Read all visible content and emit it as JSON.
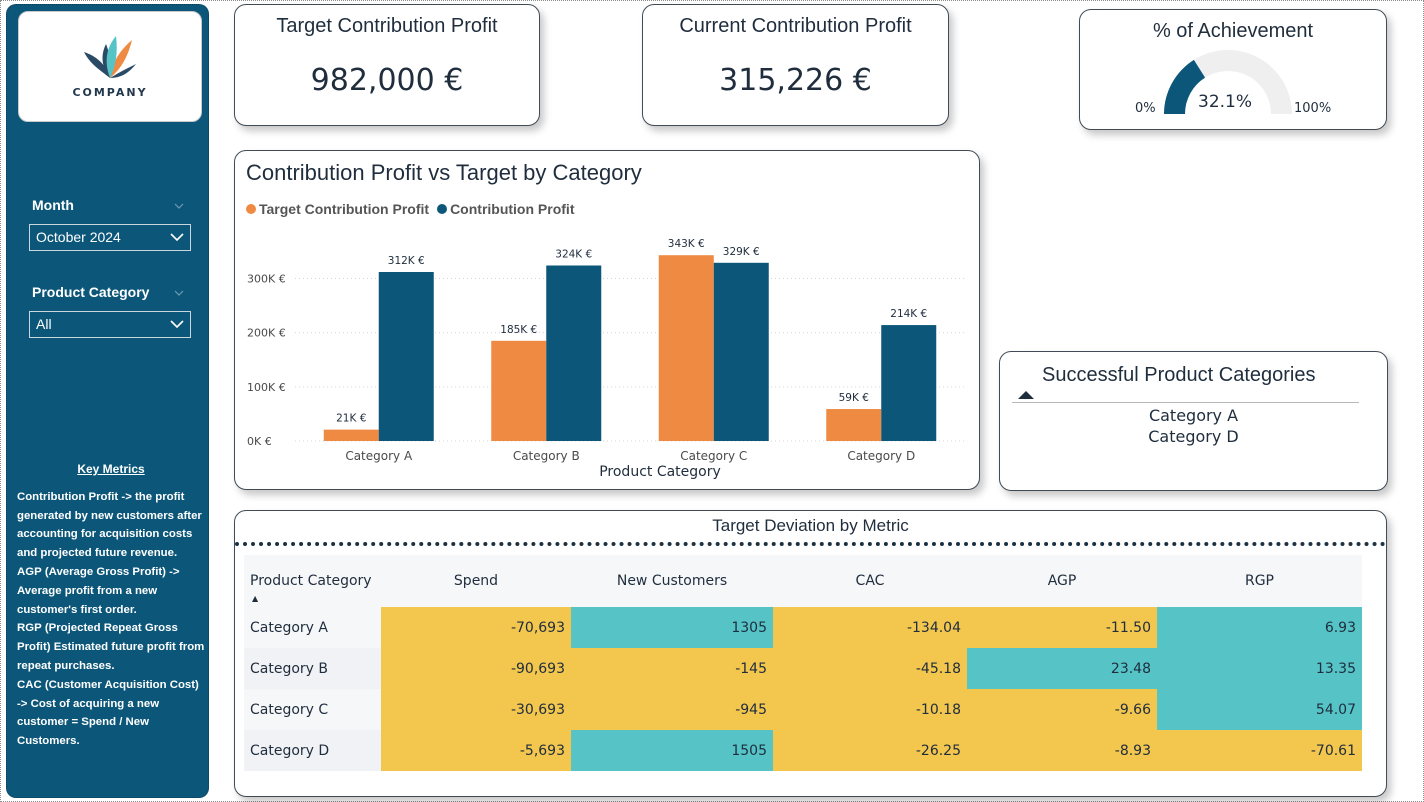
{
  "colors": {
    "sidebar": "#0c5779",
    "target_bar": "#ee8a42",
    "profit_bar": "#0c5779",
    "positive_cell": "#56c4c7",
    "negative_cell": "#f3c64e"
  },
  "logo": {
    "text": "COMPANY",
    "icon": "company-leaf-logo"
  },
  "slicers": {
    "month": {
      "label": "Month",
      "value": "October 2024"
    },
    "category": {
      "label": "Product Category",
      "value": "All"
    }
  },
  "key_metrics": {
    "title": "Key Metrics",
    "items": [
      {
        "term": "Contribution Profit",
        "text": " -> the profit generated by new customers after accounting for acquisition costs and projected future revenue."
      },
      {
        "term": "AGP",
        "text": " (Average Gross Profit) -> Average profit from a new customer's first order."
      },
      {
        "term": "RGP",
        "text": " (Projected Repeat Gross Profit) Estimated future profit from repeat purchases."
      },
      {
        "term": "CAC",
        "text": " (Customer Acquisition Cost) -> Cost of acquiring a new customer = Spend / New Customers."
      }
    ]
  },
  "kpis": {
    "target": {
      "title": "Target Contribution Profit",
      "value": "982,000 €"
    },
    "current": {
      "title": "Current Contribution Profit",
      "value": "315,226 €"
    },
    "achievement": {
      "title": "% of Achievement",
      "value_label": "32.1%",
      "min_label": "0%",
      "max_label": "100%",
      "fraction": 0.321
    }
  },
  "chart_data": {
    "type": "bar",
    "title": "Contribution Profit vs Target by Category",
    "xlabel": "Product Category",
    "ylabel": "",
    "categories": [
      "Category A",
      "Category B",
      "Category C",
      "Category D"
    ],
    "series": [
      {
        "name": "Target Contribution Profit",
        "values": [
          21,
          185,
          343,
          59
        ],
        "labels": [
          "21K €",
          "185K €",
          "343K €",
          "59K €"
        ]
      },
      {
        "name": "Contribution Profit",
        "values": [
          312,
          324,
          329,
          214
        ],
        "labels": [
          "312K €",
          "324K €",
          "329K €",
          "214K €"
        ]
      }
    ],
    "yticks": [
      0,
      100,
      200,
      300
    ],
    "ytick_labels": [
      "0K €",
      "100K €",
      "200K €",
      "300K €"
    ],
    "ylim": [
      0,
      360
    ],
    "legend": "top-left",
    "grid": true
  },
  "successful": {
    "title": "Successful Product Categories",
    "items": [
      "Category A",
      "Category D"
    ]
  },
  "table": {
    "title": "Target Deviation by Metric",
    "columns": [
      "Product Category",
      "Spend",
      "New Customers",
      "CAC",
      "AGP",
      "RGP"
    ],
    "rows": [
      {
        "category": "Category A",
        "values": [
          "-70,693",
          "1305",
          "-134.04",
          "-11.50",
          "6.93"
        ],
        "status": [
          "neg",
          "pos",
          "neg",
          "neg",
          "pos"
        ]
      },
      {
        "category": "Category B",
        "values": [
          "-90,693",
          "-145",
          "-45.18",
          "23.48",
          "13.35"
        ],
        "status": [
          "neg",
          "neg",
          "neg",
          "pos",
          "pos"
        ]
      },
      {
        "category": "Category C",
        "values": [
          "-30,693",
          "-945",
          "-10.18",
          "-9.66",
          "54.07"
        ],
        "status": [
          "neg",
          "neg",
          "neg",
          "neg",
          "pos"
        ]
      },
      {
        "category": "Category D",
        "values": [
          "-5,693",
          "1505",
          "-26.25",
          "-8.93",
          "-70.61"
        ],
        "status": [
          "neg",
          "pos",
          "neg",
          "neg",
          "neg"
        ]
      }
    ]
  }
}
